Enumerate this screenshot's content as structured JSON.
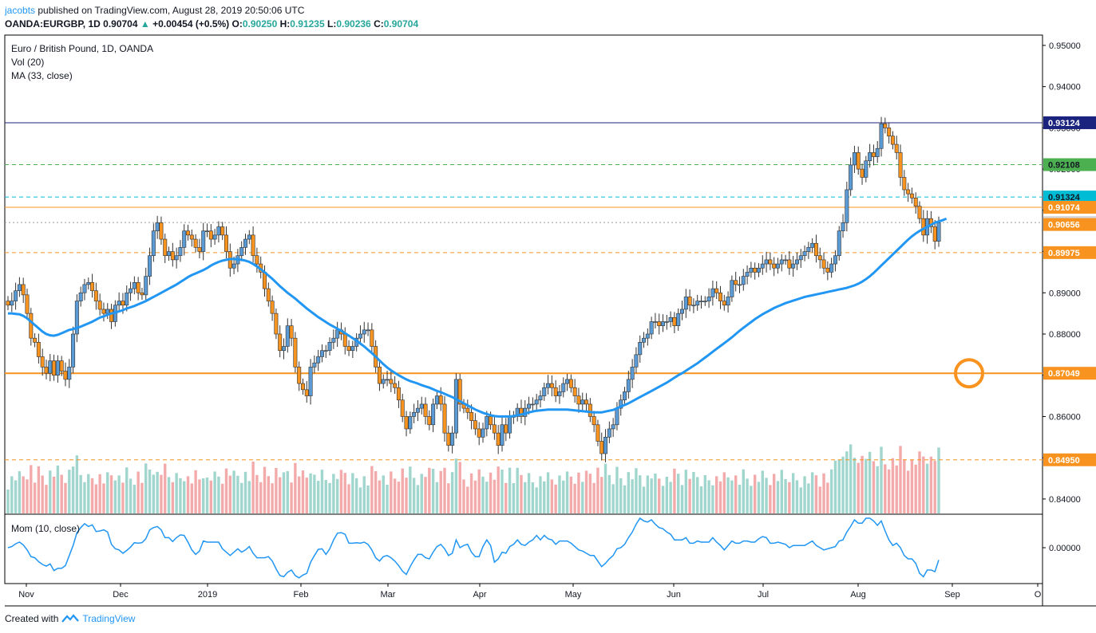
{
  "header": {
    "author": "jacobts",
    "published": "published on TradingView.com, August 28, 2019 20:50:06 UTC",
    "symbol": "OANDA:EURGBP, 1D",
    "last": "0.90704",
    "change_arrow": "▲",
    "change": "+0.00454 (+0.5%)",
    "o_label": "O:",
    "o_val": "0.90250",
    "h_label": "H:",
    "h_val": "0.91235",
    "l_label": "L:",
    "l_val": "0.90236",
    "c_label": "C:",
    "c_val": "0.90704"
  },
  "legend": {
    "title": "Euro / British Pound, 1D, OANDA",
    "vol": "Vol (20)",
    "ma": "MA (33, close)",
    "mom": "Mom (10, close)"
  },
  "footer": {
    "created": "Created with",
    "brand": "TradingView",
    "logo_icon": "tradingview-logo-icon"
  },
  "colors": {
    "up": "#5b9bd5",
    "down": "#f7931e",
    "ma": "#2196f3",
    "vol_up": "#8fcfc4",
    "vol_down": "#f19b9b"
  },
  "chart_data": {
    "type": "candlestick",
    "price_range": [
      0.8365,
      0.9525
    ],
    "ma_label": "MA (33, close)",
    "y_ticks": [
      "0.95000",
      "0.94000",
      "0.93000",
      "0.92000",
      "0.91000",
      "0.90000",
      "0.89000",
      "0.88000",
      "0.87000",
      "0.86000",
      "0.85000",
      "0.84000"
    ],
    "x_ticks": [
      "Nov",
      "Dec",
      "2019",
      "Feb",
      "Mar",
      "Apr",
      "May",
      "Jun",
      "Jul",
      "Aug",
      "Sep",
      "O"
    ],
    "mom_ticks": [
      "0.00000"
    ],
    "levels": [
      {
        "value": 0.93124,
        "label": "0.93124",
        "color": "#1a237e",
        "style": "solid",
        "label_color": "#ffffff"
      },
      {
        "value": 0.92108,
        "label": "0.92108",
        "color": "#4caf50",
        "style": "dashed",
        "label_color": "#131722"
      },
      {
        "value": 0.91324,
        "label": "0.91324",
        "color": "#00bcd4",
        "style": "dashed",
        "label_color": "#131722"
      },
      {
        "value": 0.91074,
        "label": "0.91074",
        "color": "#f7931e",
        "style": "thin",
        "label_color": "#ffffff"
      },
      {
        "value": 0.90704,
        "label": "0.90704",
        "color": "#999999",
        "style": "dotted",
        "label_color": "#131722"
      },
      {
        "value": 0.90656,
        "label": "0.90656",
        "color": "#f7931e",
        "style": "none",
        "label_color": "#ffffff"
      },
      {
        "value": 0.89975,
        "label": "0.89975",
        "color": "#f7931e",
        "style": "dashed",
        "label_color": "#ffffff"
      },
      {
        "value": 0.87049,
        "label": "0.87049",
        "color": "#f7931e",
        "style": "thick",
        "label_color": "#ffffff"
      },
      {
        "value": 0.8495,
        "label": "0.84950",
        "color": "#f7931e",
        "style": "dashed",
        "label_color": "#ffffff"
      }
    ],
    "markers": [
      {
        "type": "circle",
        "value": 0.87049,
        "color": "#f7931e",
        "near": "Sep"
      }
    ],
    "series": [
      {
        "name": "close",
        "values": [
          0.887,
          0.888,
          0.8905,
          0.892,
          0.8895,
          0.885,
          0.879,
          0.878,
          0.8745,
          0.872,
          0.8705,
          0.8735,
          0.87,
          0.8735,
          0.871,
          0.869,
          0.872,
          0.88,
          0.888,
          0.89,
          0.892,
          0.8925,
          0.8905,
          0.888,
          0.886,
          0.885,
          0.886,
          0.883,
          0.887,
          0.888,
          0.887,
          0.89,
          0.891,
          0.8925,
          0.89,
          0.8895,
          0.894,
          0.899,
          0.905,
          0.907,
          0.903,
          0.899,
          0.9,
          0.898,
          0.899,
          0.901,
          0.905,
          0.904,
          0.903,
          0.901,
          0.9,
          0.905,
          0.905,
          0.903,
          0.904,
          0.906,
          0.904,
          0.9,
          0.896,
          0.897,
          0.899,
          0.901,
          0.903,
          0.904,
          0.899,
          0.897,
          0.895,
          0.891,
          0.888,
          0.885,
          0.88,
          0.876,
          0.877,
          0.882,
          0.879,
          0.872,
          0.868,
          0.8665,
          0.865,
          0.872,
          0.873,
          0.8745,
          0.876,
          0.876,
          0.878,
          0.879,
          0.881,
          0.88,
          0.877,
          0.876,
          0.877,
          0.879,
          0.88,
          0.881,
          0.881,
          0.877,
          0.872,
          0.868,
          0.869,
          0.869,
          0.868,
          0.867,
          0.864,
          0.86,
          0.857,
          0.86,
          0.861,
          0.862,
          0.863,
          0.86,
          0.858,
          0.863,
          0.865,
          0.863,
          0.856,
          0.853,
          0.856,
          0.869,
          0.863,
          0.862,
          0.861,
          0.859,
          0.857,
          0.855,
          0.857,
          0.86,
          0.858,
          0.856,
          0.853,
          0.858,
          0.856,
          0.86,
          0.86,
          0.862,
          0.86,
          0.862,
          0.863,
          0.863,
          0.864,
          0.865,
          0.867,
          0.868,
          0.867,
          0.865,
          0.866,
          0.868,
          0.869,
          0.867,
          0.865,
          0.863,
          0.864,
          0.863,
          0.86,
          0.858,
          0.854,
          0.851,
          0.855,
          0.857,
          0.858,
          0.862,
          0.864,
          0.866,
          0.869,
          0.872,
          0.875,
          0.878,
          0.879,
          0.88,
          0.883,
          0.883,
          0.882,
          0.883,
          0.883,
          0.884,
          0.882,
          0.885,
          0.886,
          0.889,
          0.887,
          0.887,
          0.888,
          0.888,
          0.888,
          0.889,
          0.891,
          0.89,
          0.888,
          0.887,
          0.889,
          0.893,
          0.892,
          0.892,
          0.894,
          0.895,
          0.896,
          0.895,
          0.896,
          0.897,
          0.898,
          0.897,
          0.896,
          0.897,
          0.898,
          0.898,
          0.896,
          0.897,
          0.898,
          0.899,
          0.9,
          0.901,
          0.902,
          0.899,
          0.898,
          0.896,
          0.895,
          0.897,
          0.899,
          0.905,
          0.907,
          0.915,
          0.921,
          0.924,
          0.92,
          0.918,
          0.922,
          0.924,
          0.923,
          0.925,
          0.931,
          0.93,
          0.928,
          0.926,
          0.924,
          0.918,
          0.915,
          0.914,
          0.913,
          0.911,
          0.908,
          0.904,
          0.908,
          0.906,
          0.9025,
          0.907
        ]
      },
      {
        "name": "MA (33, close)",
        "values": [
          0.885,
          0.885,
          0.8849,
          0.8848,
          0.8844,
          0.8838,
          0.883,
          0.8822,
          0.8814,
          0.8806,
          0.88,
          0.8797,
          0.8796,
          0.8798,
          0.8802,
          0.8806,
          0.881,
          0.8812,
          0.8815,
          0.8818,
          0.8822,
          0.8826,
          0.883,
          0.8835,
          0.884,
          0.8843,
          0.8847,
          0.885,
          0.8852,
          0.8855,
          0.8858,
          0.8862,
          0.8865,
          0.8868,
          0.8872,
          0.8876,
          0.888,
          0.8885,
          0.889,
          0.8895,
          0.89,
          0.8905,
          0.891,
          0.8915,
          0.892,
          0.8926,
          0.8932,
          0.8938,
          0.8943,
          0.8947,
          0.8951,
          0.8955,
          0.896,
          0.8966,
          0.8971,
          0.8975,
          0.8978,
          0.898,
          0.8982,
          0.8982,
          0.8981,
          0.898,
          0.8978,
          0.8975,
          0.897,
          0.8964,
          0.8957,
          0.895,
          0.8942,
          0.8934,
          0.8925,
          0.8916,
          0.8908,
          0.89,
          0.8893,
          0.8886,
          0.8878,
          0.887,
          0.8862,
          0.8855,
          0.8848,
          0.8841,
          0.8835,
          0.8829,
          0.8823,
          0.8818,
          0.8813,
          0.8808,
          0.8802,
          0.8796,
          0.879,
          0.8784,
          0.8777,
          0.877,
          0.8762,
          0.8754,
          0.8745,
          0.8736,
          0.8727,
          0.8719,
          0.8712,
          0.8706,
          0.87,
          0.8695,
          0.869,
          0.8686,
          0.8683,
          0.868,
          0.8676,
          0.8673,
          0.867,
          0.8666,
          0.8662,
          0.8659,
          0.8655,
          0.8651,
          0.8647,
          0.8642,
          0.8637,
          0.8632,
          0.8627,
          0.8622,
          0.8617,
          0.8613,
          0.8609,
          0.8606,
          0.8603,
          0.8601,
          0.86,
          0.86,
          0.86,
          0.86,
          0.8601,
          0.8603,
          0.8605,
          0.8607,
          0.861,
          0.8612,
          0.8614,
          0.8615,
          0.8616,
          0.8617,
          0.8617,
          0.8617,
          0.8617,
          0.8617,
          0.8617,
          0.8616,
          0.8615,
          0.8614,
          0.8613,
          0.8612,
          0.8611,
          0.861,
          0.861,
          0.861,
          0.8612,
          0.8614,
          0.8616,
          0.862,
          0.8624,
          0.8628,
          0.8632,
          0.8637,
          0.8642,
          0.8647,
          0.8652,
          0.8657,
          0.8662,
          0.8667,
          0.8672,
          0.8677,
          0.8682,
          0.8688,
          0.8694,
          0.87,
          0.8705,
          0.8711,
          0.8717,
          0.8723,
          0.8729,
          0.8736,
          0.8743,
          0.875,
          0.8757,
          0.8764,
          0.8771,
          0.8778,
          0.8785,
          0.8792,
          0.88,
          0.8808,
          0.8815,
          0.8822,
          0.8829,
          0.8836,
          0.8842,
          0.8848,
          0.8853,
          0.8858,
          0.8863,
          0.8867,
          0.8871,
          0.8875,
          0.8878,
          0.8881,
          0.8884,
          0.8887,
          0.889,
          0.8892,
          0.8894,
          0.8896,
          0.8898,
          0.89,
          0.8902,
          0.8904,
          0.8906,
          0.8908,
          0.891,
          0.8912,
          0.8915,
          0.8918,
          0.8922,
          0.8927,
          0.8933,
          0.894,
          0.8948,
          0.8957,
          0.8966,
          0.8975,
          0.8984,
          0.8993,
          0.9002,
          0.9011,
          0.902,
          0.9029,
          0.9037,
          0.9044,
          0.905,
          0.9055,
          0.906,
          0.9065,
          0.907,
          0.9073,
          0.9076,
          0.908
        ]
      }
    ]
  }
}
